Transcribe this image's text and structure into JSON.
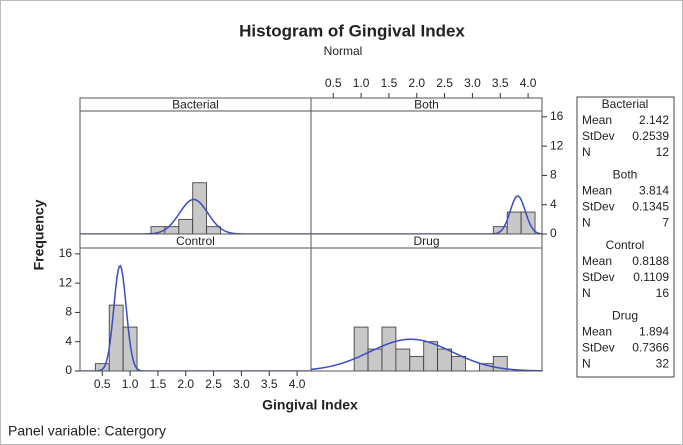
{
  "title": "Histogram of Gingival Index",
  "subtitle": "Normal",
  "x_label": "Gingival Index",
  "y_label": "Frequency",
  "footer": "Panel variable: Catergory",
  "stat_labels": [
    "Mean",
    "StDev",
    "N"
  ],
  "chart_data": [
    {
      "type": "histogram",
      "title": "Bacterial",
      "bins": [
        1.375,
        1.625,
        1.875,
        2.125,
        2.375,
        2.625
      ],
      "values": [
        1,
        1,
        2,
        7,
        1
      ],
      "mean": 2.142,
      "stdev": 0.2539,
      "n": 12,
      "xlim": [
        0.1,
        4.25
      ],
      "ylim": [
        0,
        16.8
      ],
      "color": "#c8c8c8",
      "curve_color": "#3b4cc0"
    },
    {
      "type": "histogram",
      "title": "Both",
      "bins": [
        3.375,
        3.625,
        3.875,
        4.125
      ],
      "values": [
        1,
        3,
        3
      ],
      "mean": 3.814,
      "stdev": 0.1345,
      "n": 7,
      "xlim": [
        0.1,
        4.25
      ],
      "ylim": [
        0,
        16.8
      ],
      "color": "#c8c8c8",
      "curve_color": "#3b4cc0",
      "xticks": [
        0.5,
        {
          "value": 1,
          "label": "1.0"
        },
        1.5,
        {
          "value": 2,
          "label": "2.0"
        },
        2.5,
        {
          "value": 3,
          "label": "3.0"
        },
        3.5,
        {
          "value": 4,
          "label": "4.0"
        }
      ],
      "yticks": [
        0,
        4,
        8,
        12,
        16
      ]
    },
    {
      "type": "histogram",
      "title": "Control",
      "bins": [
        0.375,
        0.625,
        0.875,
        1.125
      ],
      "values": [
        1,
        9,
        6
      ],
      "mean": 0.8188,
      "stdev": 0.1109,
      "n": 16,
      "xlim": [
        0.1,
        4.25
      ],
      "ylim": [
        0,
        16.8
      ],
      "color": "#c8c8c8",
      "curve_color": "#3b4cc0",
      "xticks": [
        0.5,
        {
          "value": 1,
          "label": "1.0"
        },
        1.5,
        {
          "value": 2,
          "label": "2.0"
        },
        2.5,
        {
          "value": 3,
          "label": "3.0"
        },
        3.5,
        {
          "value": 4,
          "label": "4.0"
        }
      ],
      "yticks": [
        0,
        4,
        8,
        12,
        16
      ]
    },
    {
      "type": "histogram",
      "title": "Drug",
      "bins": [
        0.875,
        1.125,
        1.375,
        1.625,
        1.875,
        2.125,
        2.375,
        2.625,
        2.875,
        3.125,
        3.375,
        3.625
      ],
      "values": [
        6,
        3,
        6,
        3,
        2,
        4,
        3,
        2,
        0,
        1,
        2
      ],
      "mean": 1.894,
      "stdev": 0.7366,
      "n": 32,
      "xlim": [
        0.1,
        4.25
      ],
      "ylim": [
        0,
        16.8
      ],
      "color": "#c8c8c8",
      "curve_color": "#3b4cc0"
    }
  ]
}
